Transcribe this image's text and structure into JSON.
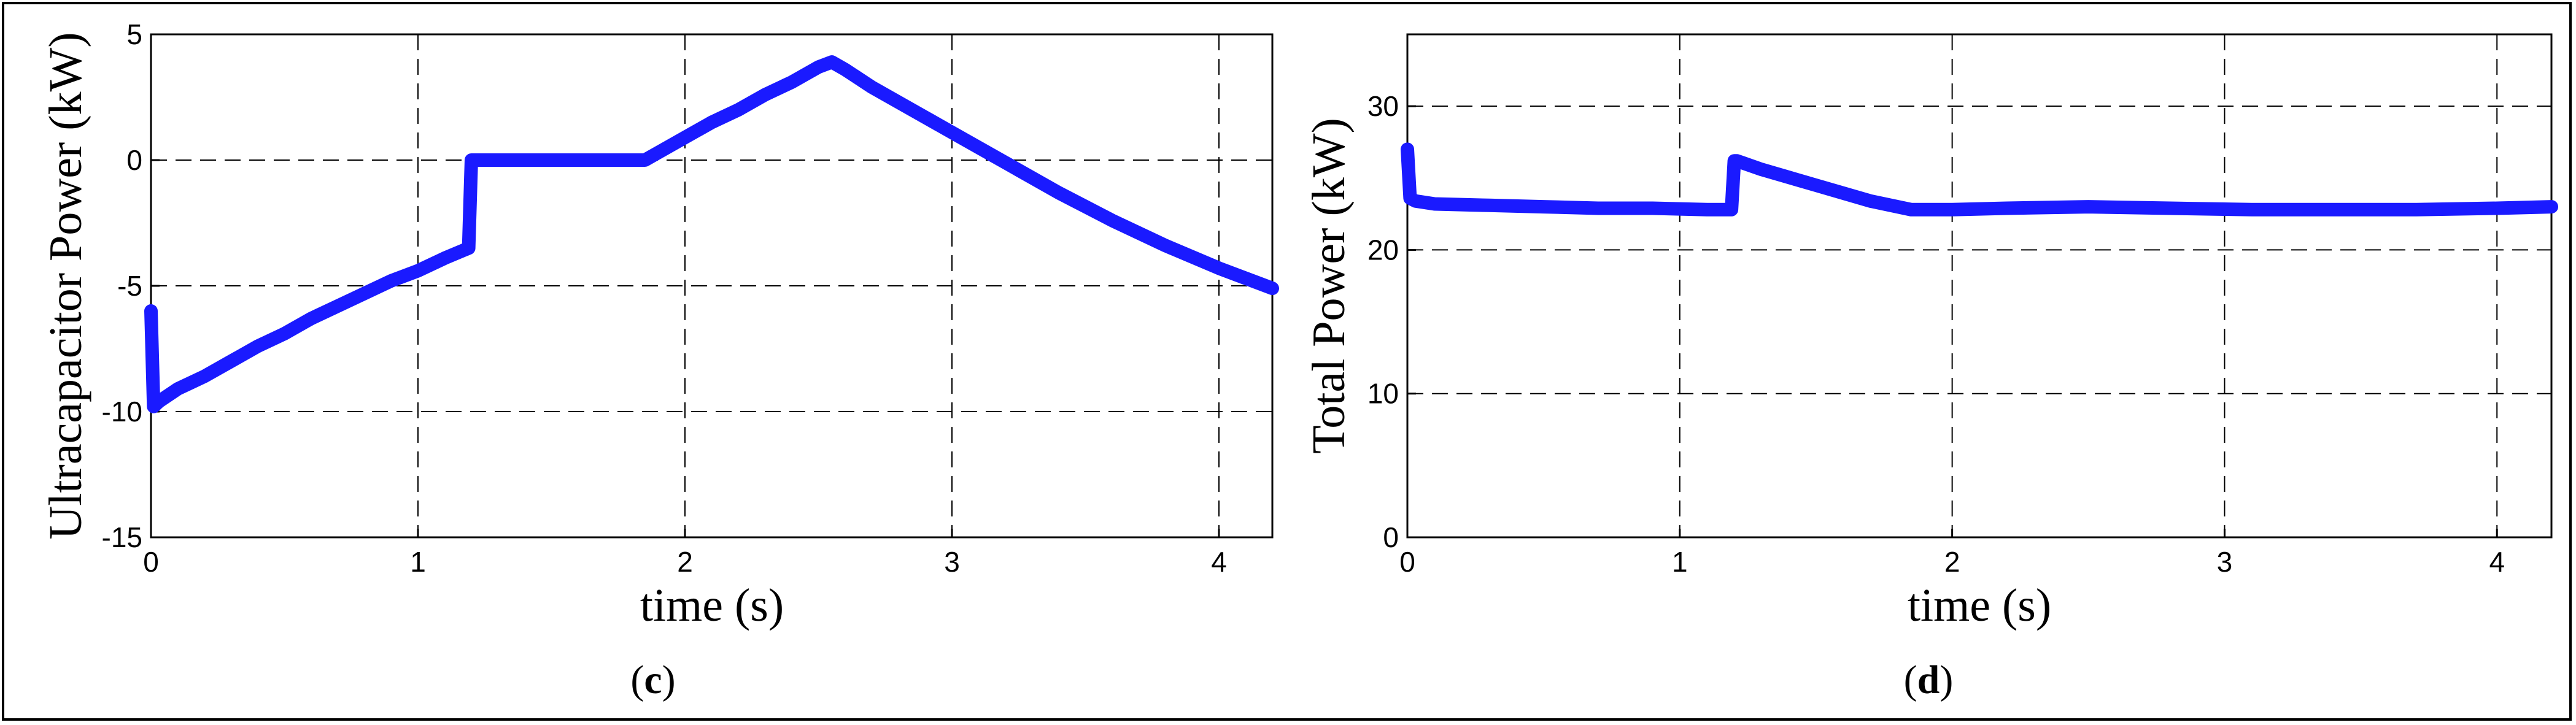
{
  "chart_data": [
    {
      "type": "line",
      "panel_label": {
        "open": "(",
        "letter": "c",
        "close": ")"
      },
      "title": "",
      "xlabel": "time (s)",
      "ylabel": "Ultracapacitor Power (kW)",
      "xlim": [
        0,
        4.2
      ],
      "ylim": [
        -15,
        5
      ],
      "xticks": [
        0,
        1,
        2,
        3,
        4
      ],
      "yticks": [
        -15,
        -10,
        -5,
        0,
        5
      ],
      "grid": true,
      "color": "#1a1aff",
      "series": [
        {
          "x": [
            0.0,
            0.01,
            0.03,
            0.1,
            0.2,
            0.3,
            0.4,
            0.5,
            0.6,
            0.7,
            0.8,
            0.9,
            1.0,
            1.1,
            1.19,
            1.2,
            1.21,
            1.3,
            1.5,
            1.7,
            1.85,
            1.9,
            2.0,
            2.1,
            2.2,
            2.3,
            2.4,
            2.5,
            2.55,
            2.6,
            2.7,
            2.8,
            2.9,
            3.0,
            3.2,
            3.4,
            3.6,
            3.8,
            4.0,
            4.1,
            4.2
          ],
          "y": [
            -6.0,
            -9.8,
            -9.6,
            -9.1,
            -8.6,
            -8.0,
            -7.4,
            -6.9,
            -6.3,
            -5.8,
            -5.3,
            -4.8,
            -4.4,
            -3.9,
            -3.5,
            0.0,
            0.0,
            0.0,
            0.0,
            0.0,
            0.0,
            0.3,
            0.9,
            1.5,
            2.0,
            2.6,
            3.1,
            3.7,
            3.9,
            3.6,
            2.9,
            2.3,
            1.7,
            1.1,
            -0.1,
            -1.3,
            -2.4,
            -3.4,
            -4.3,
            -4.7,
            -5.1
          ]
        }
      ]
    },
    {
      "type": "line",
      "panel_label": {
        "open": "(",
        "letter": "d",
        "close": ")"
      },
      "title": "",
      "xlabel": "time (s)",
      "ylabel": "Total Power (kW)",
      "xlim": [
        0,
        4.2
      ],
      "ylim": [
        0,
        35
      ],
      "xticks": [
        0,
        1,
        2,
        3,
        4
      ],
      "yticks": [
        0,
        10,
        20,
        30
      ],
      "grid": true,
      "color": "#1a1aff",
      "series": [
        {
          "x": [
            0.0,
            0.01,
            0.03,
            0.1,
            0.3,
            0.5,
            0.7,
            0.9,
            1.1,
            1.19,
            1.2,
            1.21,
            1.3,
            1.5,
            1.7,
            1.85,
            2.0,
            2.2,
            2.5,
            2.8,
            3.1,
            3.4,
            3.7,
            4.0,
            4.2
          ],
          "y": [
            27.0,
            23.6,
            23.4,
            23.2,
            23.1,
            23.0,
            22.9,
            22.9,
            22.8,
            22.8,
            26.2,
            26.2,
            25.6,
            24.5,
            23.4,
            22.8,
            22.8,
            22.9,
            23.0,
            22.9,
            22.8,
            22.8,
            22.8,
            22.9,
            23.0
          ]
        }
      ]
    }
  ]
}
